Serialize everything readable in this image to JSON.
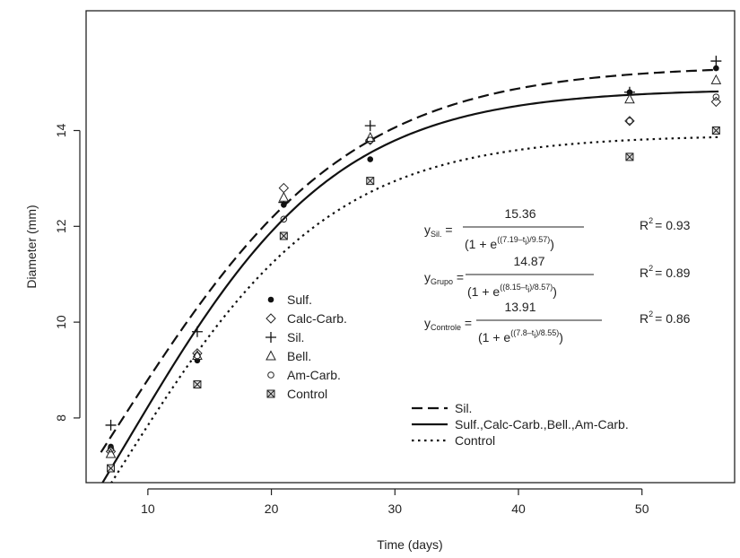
{
  "chart_data": {
    "type": "scatter",
    "xlabel": "Time (days)",
    "ylabel": "Diameter (mm)",
    "xlim": [
      5,
      57.5
    ],
    "ylim": [
      6.65,
      16.5
    ],
    "xticks": [
      10,
      20,
      30,
      40,
      50
    ],
    "yticks": [
      8,
      10,
      12,
      14
    ],
    "x": [
      7,
      14,
      21,
      28,
      49,
      56
    ],
    "series": [
      {
        "name": "Sulf.",
        "marker": "filled-circle",
        "values": [
          7.4,
          9.2,
          12.45,
          13.4,
          14.8,
          15.3
        ]
      },
      {
        "name": "Calc-Carb.",
        "marker": "diamond",
        "values": [
          7.3,
          9.35,
          12.8,
          13.8,
          14.2,
          14.6
        ]
      },
      {
        "name": "Sil.",
        "marker": "plus",
        "values": [
          7.85,
          9.8,
          12.5,
          14.1,
          14.8,
          15.45
        ]
      },
      {
        "name": "Bell.",
        "marker": "triangle",
        "values": [
          7.25,
          9.3,
          12.6,
          13.85,
          14.65,
          15.05
        ]
      },
      {
        "name": "Am-Carb.",
        "marker": "open-circle",
        "values": [
          7.35,
          9.3,
          12.15,
          13.8,
          14.2,
          14.7
        ]
      },
      {
        "name": "Control",
        "marker": "boxed-x",
        "values": [
          6.95,
          8.7,
          11.8,
          12.95,
          13.45,
          14.0
        ]
      }
    ],
    "curves": [
      {
        "name": "Sil.",
        "style": "dashed",
        "a": 15.36,
        "b": 7.19,
        "c": 9.57
      },
      {
        "name": "Sulf.,Calc-Carb.,Bell.,Am-Carb.",
        "style": "solid",
        "a": 14.87,
        "b": 8.15,
        "c": 8.57
      },
      {
        "name": "Control",
        "style": "dotted",
        "a": 13.91,
        "b": 7.8,
        "c": 8.55
      }
    ],
    "equations": [
      {
        "lhs": "y",
        "subscript": "Sil.",
        "numerator": "15.36",
        "exp": "((7.19–t",
        "exp_sub": "i",
        "exp_rest": ")/9.57)",
        "r2": "R",
        "r2_sup": "2",
        "r2_value": "= 0.93"
      },
      {
        "lhs": "y",
        "subscript": "Grupo",
        "numerator": "14.87",
        "exp": "((8.15–t",
        "exp_sub": "i",
        "exp_rest": ")/8.57)",
        "r2": "R",
        "r2_sup": "2",
        "r2_value": "= 0.89"
      },
      {
        "lhs": "y",
        "subscript": "Controle",
        "numerator": "13.91",
        "exp": "((7.8–t",
        "exp_sub": "i",
        "exp_rest": ")/8.55)",
        "r2": "R",
        "r2_sup": "2",
        "r2_value": "= 0.86"
      }
    ],
    "denominator_prefix": "(1 + e",
    "denominator_suffix": ")",
    "grid": false,
    "marker_legend_position": "center-left",
    "line_legend_position": "bottom-right"
  }
}
